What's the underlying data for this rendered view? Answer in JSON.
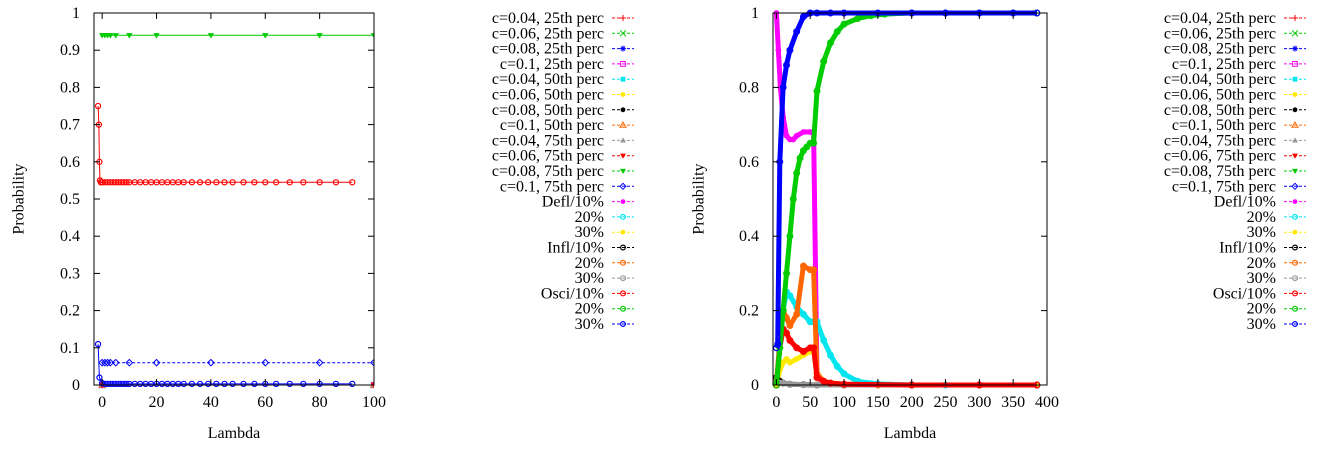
{
  "chart_data": [
    {
      "type": "line",
      "title": "",
      "xlabel": "Lambda",
      "ylabel": "Probability",
      "xlim": [
        -3,
        100
      ],
      "ylim": [
        0,
        1
      ],
      "xticks": [
        0,
        20,
        40,
        60,
        80,
        100
      ],
      "yticks": [
        0,
        0.1,
        0.2,
        0.3,
        0.4,
        0.5,
        0.6,
        0.7,
        0.8,
        0.9,
        1
      ],
      "grid": false,
      "legend_position": "right-outside",
      "series": [
        {
          "name": "c=0.04, 25th perc",
          "color": "#ff0000",
          "marker": "plus",
          "x": [
            0,
            100
          ],
          "y": [
            0,
            0
          ]
        },
        {
          "name": "c=0.06, 25th perc",
          "color": "#00cc00",
          "marker": "cross",
          "x": [
            0,
            100
          ],
          "y": [
            0,
            0
          ]
        },
        {
          "name": "c=0.08, 25th perc",
          "color": "#0000ff",
          "marker": "star",
          "x": [
            0,
            100
          ],
          "y": [
            0,
            0
          ]
        },
        {
          "name": "c=0.1, 25th perc",
          "color": "#ff00ff",
          "marker": "square-open",
          "x": [
            0,
            100
          ],
          "y": [
            0,
            0
          ]
        },
        {
          "name": "c=0.04, 50th perc",
          "color": "#00e5ee",
          "marker": "square",
          "x": [
            0,
            100
          ],
          "y": [
            0,
            0
          ]
        },
        {
          "name": "c=0.06, 50th perc",
          "color": "#ffea00",
          "marker": "circle",
          "x": [
            0,
            100
          ],
          "y": [
            0,
            0
          ]
        },
        {
          "name": "c=0.08, 50th perc",
          "color": "#000000",
          "marker": "circle",
          "x": [
            0,
            100
          ],
          "y": [
            0,
            0
          ]
        },
        {
          "name": "c=0.1, 50th perc",
          "color": "#ff6600",
          "marker": "triangle-open",
          "x": [
            0,
            100
          ],
          "y": [
            0,
            0
          ]
        },
        {
          "name": "c=0.04, 75th perc",
          "color": "#999999",
          "marker": "triangle",
          "x": [
            0,
            100
          ],
          "y": [
            0,
            0
          ]
        },
        {
          "name": "c=0.06, 75th perc",
          "color": "#ff0000",
          "marker": "triangle-down",
          "x": [
            0,
            100
          ],
          "y": [
            0,
            0
          ]
        },
        {
          "name": "c=0.08, 75th perc",
          "color": "#00cc00",
          "marker": "triangle-down",
          "x": [
            0,
            1,
            2,
            3,
            5,
            10,
            20,
            40,
            60,
            80,
            100
          ],
          "y": [
            0.94,
            0.94,
            0.94,
            0.94,
            0.94,
            0.94,
            0.94,
            0.94,
            0.94,
            0.94,
            0.94
          ]
        },
        {
          "name": "c=0.1, 75th perc",
          "color": "#0000ff",
          "marker": "diamond-open",
          "x": [
            0,
            1,
            2,
            3,
            5,
            10,
            20,
            40,
            60,
            80,
            100
          ],
          "y": [
            0.06,
            0.06,
            0.06,
            0.06,
            0.06,
            0.06,
            0.06,
            0.06,
            0.06,
            0.06,
            0.06
          ]
        },
        {
          "name": "Defl/10%",
          "color": "#ff00ff",
          "marker": "circle",
          "x": [],
          "y": []
        },
        {
          "name": "20%",
          "color": "#00e5ee",
          "marker": "circle-open",
          "x": [],
          "y": []
        },
        {
          "name": "30%",
          "color": "#ffea00",
          "marker": "circle",
          "x": [],
          "y": []
        },
        {
          "name": "Infl/10%",
          "color": "#000000",
          "marker": "circle-open",
          "x": [],
          "y": []
        },
        {
          "name": "20%",
          "color": "#ff6600",
          "marker": "circle-open",
          "x": [],
          "y": []
        },
        {
          "name": "30%",
          "color": "#999999",
          "marker": "circle-open",
          "x": [],
          "y": []
        },
        {
          "name": "Osci/10%",
          "color": "#ff0000",
          "marker": "circle-open",
          "x": [
            -1.5,
            -1.2,
            -1,
            -0.8,
            -0.5,
            0,
            1,
            2,
            3,
            4,
            5,
            6,
            7,
            8,
            9,
            10,
            12,
            14,
            16,
            18,
            20,
            22,
            24,
            26,
            28,
            30,
            33,
            36,
            39,
            42,
            45,
            48,
            52,
            56,
            60,
            64,
            69,
            74,
            80,
            86,
            92
          ],
          "y": [
            0.75,
            0.7,
            0.6,
            0.55,
            0.545,
            0.545,
            0.545,
            0.545,
            0.545,
            0.545,
            0.545,
            0.545,
            0.545,
            0.545,
            0.545,
            0.545,
            0.545,
            0.545,
            0.545,
            0.545,
            0.545,
            0.545,
            0.545,
            0.545,
            0.545,
            0.545,
            0.545,
            0.545,
            0.545,
            0.545,
            0.545,
            0.545,
            0.545,
            0.545,
            0.545,
            0.545,
            0.545,
            0.545,
            0.545,
            0.545,
            0.545
          ]
        },
        {
          "name": "20%",
          "color": "#00cc00",
          "marker": "circle-open",
          "x": [],
          "y": []
        },
        {
          "name": "30%",
          "color": "#0000ff",
          "marker": "circle-open",
          "x": [
            -1.5,
            -1,
            0,
            1,
            2,
            3,
            4,
            5,
            6,
            7,
            8,
            9,
            10,
            12,
            14,
            16,
            18,
            20,
            22,
            24,
            26,
            28,
            30,
            33,
            36,
            39,
            42,
            45,
            48,
            52,
            56,
            60,
            64,
            69,
            74,
            80,
            86,
            92
          ],
          "y": [
            0.11,
            0.02,
            0.005,
            0.003,
            0.003,
            0.003,
            0.003,
            0.003,
            0.003,
            0.003,
            0.003,
            0.003,
            0.003,
            0.003,
            0.003,
            0.003,
            0.003,
            0.003,
            0.003,
            0.003,
            0.003,
            0.003,
            0.003,
            0.003,
            0.003,
            0.003,
            0.003,
            0.003,
            0.003,
            0.003,
            0.003,
            0.003,
            0.003,
            0.003,
            0.003,
            0.003,
            0.003,
            0.003
          ]
        }
      ]
    },
    {
      "type": "line",
      "title": "",
      "xlabel": "Lambda",
      "ylabel": "Probability",
      "xlim": [
        -5,
        400
      ],
      "ylim": [
        0,
        1
      ],
      "xticks": [
        0,
        50,
        100,
        150,
        200,
        250,
        300,
        350,
        400
      ],
      "yticks": [
        0,
        0.2,
        0.4,
        0.6,
        0.8,
        1
      ],
      "grid": false,
      "legend_position": "right-outside",
      "series": [
        {
          "name": "c=0.04, 25th perc",
          "color": "#ff0000",
          "marker": "plus",
          "x": [],
          "y": []
        },
        {
          "name": "c=0.06, 25th perc",
          "color": "#00cc00",
          "marker": "cross",
          "x": [],
          "y": []
        },
        {
          "name": "c=0.08, 25th perc",
          "color": "#0000ff",
          "marker": "star",
          "x": [],
          "y": []
        },
        {
          "name": "c=0.1, 25th perc",
          "color": "#ff00ff",
          "marker": "square-open",
          "x": [],
          "y": []
        },
        {
          "name": "c=0.04, 50th perc",
          "color": "#00e5ee",
          "marker": "square",
          "x": [],
          "y": []
        },
        {
          "name": "c=0.06, 50th perc",
          "color": "#ffea00",
          "marker": "circle",
          "x": [],
          "y": []
        },
        {
          "name": "c=0.08, 50th perc",
          "color": "#000000",
          "marker": "circle",
          "x": [],
          "y": []
        },
        {
          "name": "c=0.1, 50th perc",
          "color": "#ff6600",
          "marker": "triangle-open",
          "x": [],
          "y": []
        },
        {
          "name": "c=0.04, 75th perc",
          "color": "#999999",
          "marker": "triangle",
          "x": [],
          "y": []
        },
        {
          "name": "c=0.06, 75th perc",
          "color": "#ff0000",
          "marker": "triangle-down",
          "x": [],
          "y": []
        },
        {
          "name": "c=0.08, 75th perc",
          "color": "#00cc00",
          "marker": "triangle-down",
          "x": [],
          "y": []
        },
        {
          "name": "c=0.1, 75th perc",
          "color": "#0000ff",
          "marker": "diamond-open",
          "x": [],
          "y": []
        },
        {
          "name": "Defl/10%",
          "color": "#ff00ff",
          "marker": "circle",
          "x": [
            0,
            3,
            6,
            10,
            15,
            20,
            25,
            30,
            40,
            50,
            55,
            60,
            70,
            80,
            100,
            150,
            200,
            250,
            300,
            385
          ],
          "y": [
            1.0,
            0.9,
            0.8,
            0.72,
            0.67,
            0.66,
            0.66,
            0.67,
            0.68,
            0.68,
            0.68,
            0.02,
            0.01,
            0.005,
            0.002,
            0.001,
            0.0,
            0.0,
            0.0,
            0.0
          ]
        },
        {
          "name": "20%",
          "color": "#00e5ee",
          "marker": "circle-open",
          "x": [
            0,
            5,
            10,
            15,
            20,
            30,
            40,
            50,
            55,
            60,
            70,
            80,
            90,
            100,
            120,
            150,
            200,
            250,
            300,
            385
          ],
          "y": [
            0.0,
            0.1,
            0.2,
            0.25,
            0.24,
            0.21,
            0.19,
            0.17,
            0.17,
            0.17,
            0.12,
            0.08,
            0.05,
            0.03,
            0.01,
            0.003,
            0.0,
            0.0,
            0.0,
            0.0
          ]
        },
        {
          "name": "30%",
          "color": "#ffea00",
          "marker": "circle",
          "x": [
            0,
            5,
            10,
            15,
            20,
            30,
            40,
            50,
            55,
            60,
            70,
            80,
            100,
            150,
            200,
            300,
            385
          ],
          "y": [
            0.0,
            0.04,
            0.06,
            0.07,
            0.06,
            0.07,
            0.08,
            0.09,
            0.09,
            0.03,
            0.01,
            0.005,
            0.002,
            0.0,
            0.0,
            0.0,
            0.0
          ]
        },
        {
          "name": "Infl/10%",
          "color": "#000000",
          "marker": "circle-open",
          "x": [
            0,
            5,
            10,
            20,
            40,
            60,
            100,
            200,
            300,
            385
          ],
          "y": [
            0.02,
            0.01,
            0.005,
            0.002,
            0.001,
            0.0,
            0.0,
            0.0,
            0.0,
            0.0
          ]
        },
        {
          "name": "20%",
          "color": "#ff6600",
          "marker": "circle-open",
          "x": [
            0,
            5,
            10,
            15,
            20,
            30,
            40,
            50,
            55,
            60,
            70,
            80,
            100,
            150,
            200,
            300,
            385
          ],
          "y": [
            0.0,
            0.12,
            0.2,
            0.18,
            0.16,
            0.19,
            0.32,
            0.31,
            0.31,
            0.03,
            0.01,
            0.005,
            0.002,
            0.0,
            0.0,
            0.0,
            0.0
          ]
        },
        {
          "name": "30%",
          "color": "#999999",
          "marker": "circle-open",
          "x": [
            0,
            10,
            20,
            40,
            60,
            100,
            200,
            300,
            385
          ],
          "y": [
            0.01,
            0.005,
            0.002,
            0.001,
            0.0,
            0.0,
            0.0,
            0.0,
            0.0
          ]
        },
        {
          "name": "Osci/10%",
          "color": "#ff0000",
          "marker": "circle-open",
          "x": [
            0,
            5,
            10,
            15,
            20,
            30,
            40,
            50,
            55,
            60,
            70,
            80,
            100,
            200,
            300,
            385
          ],
          "y": [
            0.0,
            0.1,
            0.15,
            0.14,
            0.12,
            0.1,
            0.09,
            0.1,
            0.1,
            0.02,
            0.01,
            0.005,
            0.002,
            0.0,
            0.0,
            0.0
          ]
        },
        {
          "name": "20%",
          "color": "#00cc00",
          "marker": "circle-open",
          "x": [
            0,
            5,
            10,
            15,
            20,
            25,
            30,
            35,
            40,
            45,
            50,
            55,
            60,
            70,
            80,
            90,
            100,
            120,
            140,
            160,
            200,
            250,
            300,
            350,
            385
          ],
          "y": [
            0.0,
            0.1,
            0.2,
            0.3,
            0.4,
            0.5,
            0.57,
            0.61,
            0.63,
            0.64,
            0.65,
            0.65,
            0.79,
            0.87,
            0.92,
            0.95,
            0.97,
            0.985,
            0.993,
            0.997,
            1.0,
            1.0,
            1.0,
            1.0,
            1.0
          ]
        },
        {
          "name": "30%",
          "color": "#0000ff",
          "marker": "circle-open",
          "x": [
            0,
            2,
            5,
            10,
            15,
            20,
            30,
            40,
            50,
            60,
            80,
            100,
            150,
            200,
            250,
            300,
            350,
            385
          ],
          "y": [
            0.1,
            0.11,
            0.6,
            0.8,
            0.86,
            0.9,
            0.95,
            0.99,
            1.0,
            1.0,
            1.0,
            1.0,
            1.0,
            1.0,
            1.0,
            1.0,
            1.0,
            1.0
          ]
        }
      ]
    }
  ]
}
